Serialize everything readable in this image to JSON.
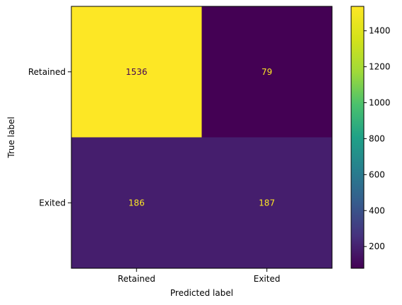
{
  "chart_data": {
    "type": "heatmap",
    "title": "",
    "xlabel": "Predicted label",
    "ylabel": "True label",
    "x_categories": [
      "Retained",
      "Exited"
    ],
    "y_categories": [
      "Retained",
      "Exited"
    ],
    "matrix": [
      [
        1536,
        79
      ],
      [
        186,
        187
      ]
    ],
    "colormap": "viridis",
    "colorbar": {
      "ticks": [
        200,
        400,
        600,
        800,
        1000,
        1200,
        1400
      ],
      "range": [
        79,
        1536
      ]
    },
    "grid": false,
    "legend": "colorbar-right"
  }
}
